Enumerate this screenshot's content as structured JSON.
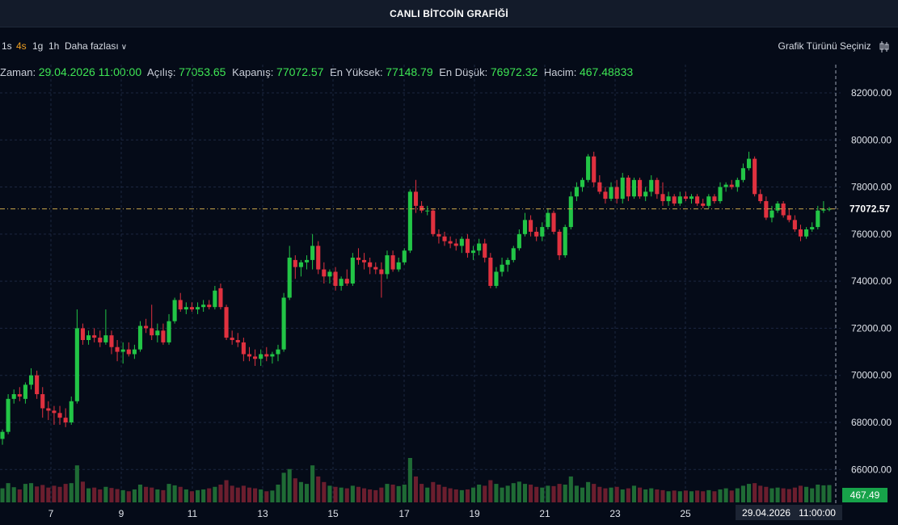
{
  "title": "CANLI BİTCOİN GRAFİĞİ",
  "toolbar": {
    "timeframes": [
      {
        "label": "1s",
        "active": false
      },
      {
        "label": "4s",
        "active": true
      },
      {
        "label": "1g",
        "active": false
      },
      {
        "label": "1h",
        "active": false
      }
    ],
    "more_label": "Daha fazlası",
    "chart_type_label": "Grafik Türünü Seçiniz"
  },
  "ohlc": {
    "time_label": "Zaman:",
    "time_value": "29.04.2026 11:00:00",
    "open_label": "Açılış:",
    "open_value": "77053.65",
    "close_label": "Kapanış:",
    "close_value": "77072.57",
    "high_label": "En Yüksek:",
    "high_value": "77148.79",
    "low_label": "En Düşük:",
    "low_value": "76972.32",
    "volume_label": "Hacim:",
    "volume_value": "467.48833"
  },
  "crosshair": {
    "date": "29.04.2026",
    "time": "11:00:00"
  },
  "colors": {
    "up": "#22c546",
    "down": "#e0313f",
    "accent": "#f0a020",
    "vol_up": "#1f6b35",
    "vol_down": "#6b1e2e",
    "grid": "#1c2740",
    "axis_text": "#dfe3ea",
    "price_line": "#c9a84a"
  },
  "chart_data": {
    "type": "candlestick",
    "y_ticks": [
      "82000.00",
      "80000.00",
      "78000.00",
      "76000.00",
      "74000.00",
      "72000.00",
      "70000.00",
      "68000.00",
      "66000.00"
    ],
    "x_ticks": [
      "7",
      "9",
      "11",
      "13",
      "15",
      "17",
      "19",
      "21",
      "23",
      "25"
    ],
    "ylim": [
      64500,
      83200
    ],
    "grid": true,
    "last_price_label": "77072.57",
    "last_volume_label": "467.49",
    "candles": [
      {
        "o": 67300,
        "h": 67700,
        "l": 67050,
        "c": 67600,
        "v": 380
      },
      {
        "o": 67600,
        "h": 69200,
        "l": 67500,
        "c": 69000,
        "v": 520
      },
      {
        "o": 69000,
        "h": 69400,
        "l": 68800,
        "c": 69200,
        "v": 410
      },
      {
        "o": 69200,
        "h": 69500,
        "l": 68900,
        "c": 69100,
        "v": 350
      },
      {
        "o": 69000,
        "h": 69700,
        "l": 68800,
        "c": 69600,
        "v": 500
      },
      {
        "o": 69600,
        "h": 70300,
        "l": 69400,
        "c": 70000,
        "v": 520
      },
      {
        "o": 70000,
        "h": 70200,
        "l": 69000,
        "c": 69200,
        "v": 430
      },
      {
        "o": 69200,
        "h": 69500,
        "l": 68200,
        "c": 68600,
        "v": 470
      },
      {
        "o": 68600,
        "h": 68900,
        "l": 68100,
        "c": 68500,
        "v": 400
      },
      {
        "o": 68500,
        "h": 68700,
        "l": 67900,
        "c": 68400,
        "v": 450
      },
      {
        "o": 68400,
        "h": 68700,
        "l": 67900,
        "c": 68200,
        "v": 420
      },
      {
        "o": 68200,
        "h": 68600,
        "l": 67800,
        "c": 68000,
        "v": 500
      },
      {
        "o": 68000,
        "h": 69100,
        "l": 67900,
        "c": 68900,
        "v": 520
      },
      {
        "o": 68900,
        "h": 72800,
        "l": 68800,
        "c": 72000,
        "v": 1000
      },
      {
        "o": 72000,
        "h": 72200,
        "l": 71300,
        "c": 71500,
        "v": 560
      },
      {
        "o": 71500,
        "h": 71900,
        "l": 71300,
        "c": 71700,
        "v": 380
      },
      {
        "o": 71700,
        "h": 72000,
        "l": 71400,
        "c": 71600,
        "v": 400
      },
      {
        "o": 71600,
        "h": 71900,
        "l": 71200,
        "c": 71400,
        "v": 350
      },
      {
        "o": 71400,
        "h": 72800,
        "l": 71300,
        "c": 71700,
        "v": 420
      },
      {
        "o": 71700,
        "h": 71900,
        "l": 70900,
        "c": 71200,
        "v": 390
      },
      {
        "o": 71200,
        "h": 71500,
        "l": 70600,
        "c": 71000,
        "v": 360
      },
      {
        "o": 71000,
        "h": 71400,
        "l": 70500,
        "c": 71100,
        "v": 330
      },
      {
        "o": 71100,
        "h": 71400,
        "l": 70800,
        "c": 70900,
        "v": 300
      },
      {
        "o": 70900,
        "h": 71300,
        "l": 70700,
        "c": 71100,
        "v": 350
      },
      {
        "o": 71100,
        "h": 72300,
        "l": 71000,
        "c": 72100,
        "v": 480
      },
      {
        "o": 72100,
        "h": 72400,
        "l": 71800,
        "c": 72000,
        "v": 420
      },
      {
        "o": 72000,
        "h": 73000,
        "l": 71500,
        "c": 71700,
        "v": 400
      },
      {
        "o": 71700,
        "h": 72200,
        "l": 71400,
        "c": 71900,
        "v": 350
      },
      {
        "o": 71900,
        "h": 72200,
        "l": 71300,
        "c": 71400,
        "v": 330
      },
      {
        "o": 71400,
        "h": 72600,
        "l": 71300,
        "c": 72300,
        "v": 500
      },
      {
        "o": 72300,
        "h": 73300,
        "l": 72200,
        "c": 73200,
        "v": 460
      },
      {
        "o": 73200,
        "h": 73500,
        "l": 72700,
        "c": 72800,
        "v": 420
      },
      {
        "o": 72800,
        "h": 73100,
        "l": 72600,
        "c": 72900,
        "v": 350
      },
      {
        "o": 72900,
        "h": 73100,
        "l": 72700,
        "c": 72800,
        "v": 300
      },
      {
        "o": 72800,
        "h": 73100,
        "l": 72600,
        "c": 72900,
        "v": 330
      },
      {
        "o": 72900,
        "h": 73200,
        "l": 72700,
        "c": 73000,
        "v": 350
      },
      {
        "o": 73000,
        "h": 73200,
        "l": 72800,
        "c": 72900,
        "v": 380
      },
      {
        "o": 72900,
        "h": 73800,
        "l": 72800,
        "c": 73600,
        "v": 420
      },
      {
        "o": 73700,
        "h": 73900,
        "l": 72800,
        "c": 72900,
        "v": 480
      },
      {
        "o": 72900,
        "h": 73000,
        "l": 71500,
        "c": 71600,
        "v": 600
      },
      {
        "o": 71600,
        "h": 71900,
        "l": 71300,
        "c": 71500,
        "v": 450
      },
      {
        "o": 71500,
        "h": 71800,
        "l": 71200,
        "c": 71400,
        "v": 400
      },
      {
        "o": 71400,
        "h": 71600,
        "l": 70600,
        "c": 70900,
        "v": 450
      },
      {
        "o": 70900,
        "h": 71200,
        "l": 70600,
        "c": 70800,
        "v": 400
      },
      {
        "o": 70800,
        "h": 71100,
        "l": 70400,
        "c": 70700,
        "v": 380
      },
      {
        "o": 70700,
        "h": 71100,
        "l": 70400,
        "c": 70900,
        "v": 350
      },
      {
        "o": 70900,
        "h": 71200,
        "l": 70600,
        "c": 70800,
        "v": 300
      },
      {
        "o": 70800,
        "h": 71000,
        "l": 70500,
        "c": 70900,
        "v": 320
      },
      {
        "o": 70900,
        "h": 71300,
        "l": 70600,
        "c": 71100,
        "v": 480
      },
      {
        "o": 71100,
        "h": 73500,
        "l": 71000,
        "c": 73300,
        "v": 800
      },
      {
        "o": 73300,
        "h": 75500,
        "l": 73200,
        "c": 75000,
        "v": 900
      },
      {
        "o": 74900,
        "h": 75100,
        "l": 74100,
        "c": 74600,
        "v": 650
      },
      {
        "o": 74600,
        "h": 74900,
        "l": 74200,
        "c": 74800,
        "v": 550
      },
      {
        "o": 74800,
        "h": 75100,
        "l": 74500,
        "c": 74900,
        "v": 500
      },
      {
        "o": 74900,
        "h": 76000,
        "l": 74500,
        "c": 75500,
        "v": 1000
      },
      {
        "o": 75500,
        "h": 75700,
        "l": 74300,
        "c": 74500,
        "v": 700
      },
      {
        "o": 74500,
        "h": 74800,
        "l": 73900,
        "c": 74200,
        "v": 550
      },
      {
        "o": 74200,
        "h": 74500,
        "l": 73900,
        "c": 74400,
        "v": 450
      },
      {
        "o": 74400,
        "h": 74600,
        "l": 73600,
        "c": 73800,
        "v": 420
      },
      {
        "o": 73800,
        "h": 74200,
        "l": 73600,
        "c": 74100,
        "v": 400
      },
      {
        "o": 74100,
        "h": 74500,
        "l": 73800,
        "c": 73900,
        "v": 380
      },
      {
        "o": 73900,
        "h": 75200,
        "l": 73800,
        "c": 75000,
        "v": 450
      },
      {
        "o": 75000,
        "h": 75400,
        "l": 74700,
        "c": 74900,
        "v": 420
      },
      {
        "o": 74900,
        "h": 75200,
        "l": 74500,
        "c": 74800,
        "v": 380
      },
      {
        "o": 74800,
        "h": 75000,
        "l": 74300,
        "c": 74600,
        "v": 350
      },
      {
        "o": 74600,
        "h": 74800,
        "l": 74300,
        "c": 74500,
        "v": 330
      },
      {
        "o": 74500,
        "h": 74800,
        "l": 73300,
        "c": 74300,
        "v": 400
      },
      {
        "o": 74300,
        "h": 75300,
        "l": 74100,
        "c": 75100,
        "v": 500
      },
      {
        "o": 75100,
        "h": 75300,
        "l": 74400,
        "c": 74500,
        "v": 480
      },
      {
        "o": 74500,
        "h": 75000,
        "l": 74400,
        "c": 74800,
        "v": 440
      },
      {
        "o": 74800,
        "h": 75400,
        "l": 74700,
        "c": 75300,
        "v": 480
      },
      {
        "o": 75300,
        "h": 77900,
        "l": 75200,
        "c": 77800,
        "v": 1200
      },
      {
        "o": 77800,
        "h": 78300,
        "l": 76900,
        "c": 77200,
        "v": 700
      },
      {
        "o": 77200,
        "h": 77400,
        "l": 76900,
        "c": 77000,
        "v": 500
      },
      {
        "o": 77000,
        "h": 77200,
        "l": 76800,
        "c": 77000,
        "v": 400
      },
      {
        "o": 77000,
        "h": 77100,
        "l": 75900,
        "c": 76000,
        "v": 550
      },
      {
        "o": 76000,
        "h": 76200,
        "l": 75600,
        "c": 75900,
        "v": 480
      },
      {
        "o": 75900,
        "h": 76100,
        "l": 75500,
        "c": 75700,
        "v": 420
      },
      {
        "o": 75700,
        "h": 75900,
        "l": 75400,
        "c": 75600,
        "v": 380
      },
      {
        "o": 75600,
        "h": 75800,
        "l": 75300,
        "c": 75500,
        "v": 350
      },
      {
        "o": 75500,
        "h": 75900,
        "l": 75200,
        "c": 75800,
        "v": 330
      },
      {
        "o": 75800,
        "h": 76000,
        "l": 75000,
        "c": 75200,
        "v": 350
      },
      {
        "o": 75200,
        "h": 75500,
        "l": 74900,
        "c": 75300,
        "v": 400
      },
      {
        "o": 75300,
        "h": 75800,
        "l": 75100,
        "c": 75600,
        "v": 480
      },
      {
        "o": 75600,
        "h": 75800,
        "l": 74800,
        "c": 75000,
        "v": 450
      },
      {
        "o": 75000,
        "h": 75200,
        "l": 73700,
        "c": 73800,
        "v": 600
      },
      {
        "o": 73800,
        "h": 74600,
        "l": 73700,
        "c": 74400,
        "v": 500
      },
      {
        "o": 74400,
        "h": 75000,
        "l": 74200,
        "c": 74700,
        "v": 400
      },
      {
        "o": 74700,
        "h": 75000,
        "l": 74400,
        "c": 74900,
        "v": 450
      },
      {
        "o": 74900,
        "h": 75500,
        "l": 74800,
        "c": 75400,
        "v": 520
      },
      {
        "o": 75400,
        "h": 76200,
        "l": 75300,
        "c": 76000,
        "v": 560
      },
      {
        "o": 76000,
        "h": 76900,
        "l": 75900,
        "c": 76600,
        "v": 500
      },
      {
        "o": 76600,
        "h": 76800,
        "l": 75900,
        "c": 76100,
        "v": 480
      },
      {
        "o": 76100,
        "h": 76300,
        "l": 75700,
        "c": 75900,
        "v": 420
      },
      {
        "o": 75900,
        "h": 76500,
        "l": 75700,
        "c": 76300,
        "v": 400
      },
      {
        "o": 76300,
        "h": 77100,
        "l": 76200,
        "c": 76900,
        "v": 450
      },
      {
        "o": 76900,
        "h": 77000,
        "l": 76000,
        "c": 76100,
        "v": 440
      },
      {
        "o": 76100,
        "h": 76200,
        "l": 74900,
        "c": 75100,
        "v": 500
      },
      {
        "o": 75100,
        "h": 76400,
        "l": 75000,
        "c": 76300,
        "v": 480
      },
      {
        "o": 76300,
        "h": 77800,
        "l": 76200,
        "c": 77600,
        "v": 700
      },
      {
        "o": 77600,
        "h": 78200,
        "l": 77400,
        "c": 78000,
        "v": 450
      },
      {
        "o": 78000,
        "h": 78400,
        "l": 77800,
        "c": 78300,
        "v": 400
      },
      {
        "o": 78300,
        "h": 79400,
        "l": 78200,
        "c": 79300,
        "v": 550
      },
      {
        "o": 79300,
        "h": 79500,
        "l": 78000,
        "c": 78200,
        "v": 500
      },
      {
        "o": 78200,
        "h": 78500,
        "l": 77700,
        "c": 77800,
        "v": 420
      },
      {
        "o": 77800,
        "h": 78000,
        "l": 77300,
        "c": 77500,
        "v": 380
      },
      {
        "o": 77500,
        "h": 78200,
        "l": 77400,
        "c": 78000,
        "v": 400
      },
      {
        "o": 78000,
        "h": 78300,
        "l": 77300,
        "c": 77500,
        "v": 420
      },
      {
        "o": 77500,
        "h": 78600,
        "l": 77300,
        "c": 78400,
        "v": 350
      },
      {
        "o": 78400,
        "h": 78500,
        "l": 77400,
        "c": 77600,
        "v": 380
      },
      {
        "o": 77600,
        "h": 78400,
        "l": 77500,
        "c": 78300,
        "v": 450
      },
      {
        "o": 78300,
        "h": 78400,
        "l": 77500,
        "c": 77600,
        "v": 400
      },
      {
        "o": 77600,
        "h": 78000,
        "l": 77400,
        "c": 77800,
        "v": 350
      },
      {
        "o": 77800,
        "h": 78500,
        "l": 77600,
        "c": 78300,
        "v": 380
      },
      {
        "o": 78300,
        "h": 78400,
        "l": 77500,
        "c": 77700,
        "v": 350
      },
      {
        "o": 77700,
        "h": 78200,
        "l": 77200,
        "c": 77400,
        "v": 330
      },
      {
        "o": 77400,
        "h": 77800,
        "l": 77200,
        "c": 77600,
        "v": 300
      },
      {
        "o": 77600,
        "h": 77700,
        "l": 77200,
        "c": 77300,
        "v": 320
      },
      {
        "o": 77300,
        "h": 77800,
        "l": 77200,
        "c": 77600,
        "v": 300
      },
      {
        "o": 77600,
        "h": 77800,
        "l": 77400,
        "c": 77500,
        "v": 320
      },
      {
        "o": 77500,
        "h": 77700,
        "l": 77300,
        "c": 77600,
        "v": 300
      },
      {
        "o": 77600,
        "h": 77700,
        "l": 77200,
        "c": 77300,
        "v": 320
      },
      {
        "o": 77300,
        "h": 77500,
        "l": 77100,
        "c": 77200,
        "v": 300
      },
      {
        "o": 77200,
        "h": 77700,
        "l": 77100,
        "c": 77600,
        "v": 330
      },
      {
        "o": 77600,
        "h": 77700,
        "l": 77300,
        "c": 77400,
        "v": 300
      },
      {
        "o": 77400,
        "h": 78200,
        "l": 77300,
        "c": 78000,
        "v": 350
      },
      {
        "o": 78000,
        "h": 78200,
        "l": 77800,
        "c": 78100,
        "v": 380
      },
      {
        "o": 78100,
        "h": 78300,
        "l": 77900,
        "c": 78000,
        "v": 320
      },
      {
        "o": 78000,
        "h": 78400,
        "l": 77800,
        "c": 78300,
        "v": 380
      },
      {
        "o": 78300,
        "h": 79000,
        "l": 78200,
        "c": 78800,
        "v": 450
      },
      {
        "o": 78800,
        "h": 79500,
        "l": 78700,
        "c": 79200,
        "v": 500
      },
      {
        "o": 79200,
        "h": 79300,
        "l": 77600,
        "c": 77700,
        "v": 520
      },
      {
        "o": 77700,
        "h": 77900,
        "l": 77300,
        "c": 77400,
        "v": 450
      },
      {
        "o": 77400,
        "h": 77600,
        "l": 76600,
        "c": 76700,
        "v": 420
      },
      {
        "o": 76700,
        "h": 77200,
        "l": 76500,
        "c": 77000,
        "v": 380
      },
      {
        "o": 77000,
        "h": 77400,
        "l": 76900,
        "c": 77300,
        "v": 400
      },
      {
        "o": 77300,
        "h": 77400,
        "l": 76700,
        "c": 76800,
        "v": 380
      },
      {
        "o": 76800,
        "h": 77100,
        "l": 76500,
        "c": 76600,
        "v": 360
      },
      {
        "o": 76600,
        "h": 76800,
        "l": 76100,
        "c": 76200,
        "v": 400
      },
      {
        "o": 76200,
        "h": 76400,
        "l": 75700,
        "c": 75900,
        "v": 450
      },
      {
        "o": 75900,
        "h": 76300,
        "l": 75800,
        "c": 76200,
        "v": 420
      },
      {
        "o": 76200,
        "h": 76500,
        "l": 76100,
        "c": 76300,
        "v": 380
      },
      {
        "o": 76300,
        "h": 77200,
        "l": 76200,
        "c": 77000,
        "v": 480
      },
      {
        "o": 77000,
        "h": 77400,
        "l": 76900,
        "c": 77050,
        "v": 460
      },
      {
        "o": 77053.65,
        "h": 77148.79,
        "l": 76972.32,
        "c": 77072.57,
        "v": 467.49
      }
    ]
  }
}
